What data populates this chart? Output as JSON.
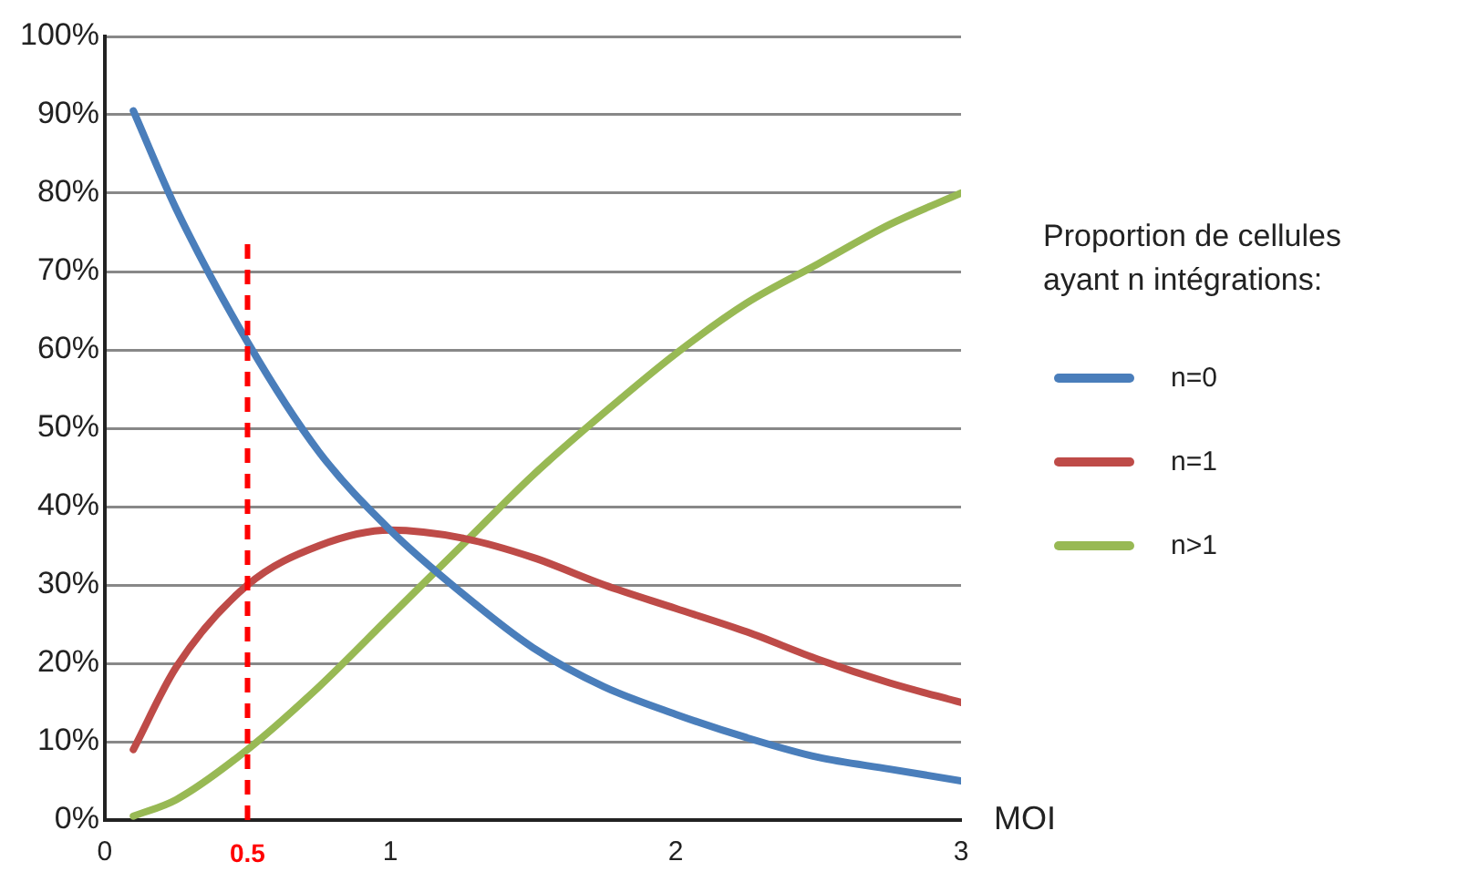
{
  "chart_data": {
    "type": "line",
    "xlabel": "MOI",
    "legend_title": "Proportion de cellules ayant n intégrations:",
    "legend": "right",
    "x": [
      0.1,
      0.25,
      0.5,
      0.75,
      1,
      1.25,
      1.5,
      1.75,
      2,
      2.25,
      2.5,
      2.75,
      3
    ],
    "series": [
      {
        "name": "n=0",
        "color": "#4a7ebb",
        "values": [
          90.5,
          78,
          61,
          47,
          37,
          29,
          22,
          17,
          13.5,
          10.5,
          8,
          6.5,
          5
        ]
      },
      {
        "name": "n=1",
        "color": "#be4b48",
        "values": [
          9,
          19.5,
          30,
          35,
          37,
          36,
          33.5,
          30,
          27,
          24,
          20.5,
          17.5,
          15
        ]
      },
      {
        "name": "n>1",
        "color": "#98b954",
        "values": [
          0.5,
          2.6,
          9,
          17,
          26,
          35,
          44,
          52,
          59.5,
          66,
          71,
          76,
          80
        ]
      }
    ],
    "xlim": [
      0,
      3
    ],
    "xticks": [
      0,
      1,
      2,
      3
    ],
    "ylim": [
      0,
      100
    ],
    "yticks": [
      {
        "value": 0,
        "label": "0%"
      },
      {
        "value": 10,
        "label": "10%"
      },
      {
        "value": 20,
        "label": "20%"
      },
      {
        "value": 30,
        "label": "30%"
      },
      {
        "value": 40,
        "label": "40%"
      },
      {
        "value": 50,
        "label": "50%"
      },
      {
        "value": 60,
        "label": "60%"
      },
      {
        "value": 70,
        "label": "70%"
      },
      {
        "value": 80,
        "label": "80%"
      },
      {
        "value": 90,
        "label": "90%"
      },
      {
        "value": 100,
        "label": "100%"
      }
    ],
    "grid": "y",
    "marker": "none",
    "line_style": "solid",
    "ref_lines": [
      {
        "axis": "x",
        "value": 0.5,
        "label": "0.5",
        "color": "#ff0000",
        "line_style": "dashed"
      }
    ]
  }
}
